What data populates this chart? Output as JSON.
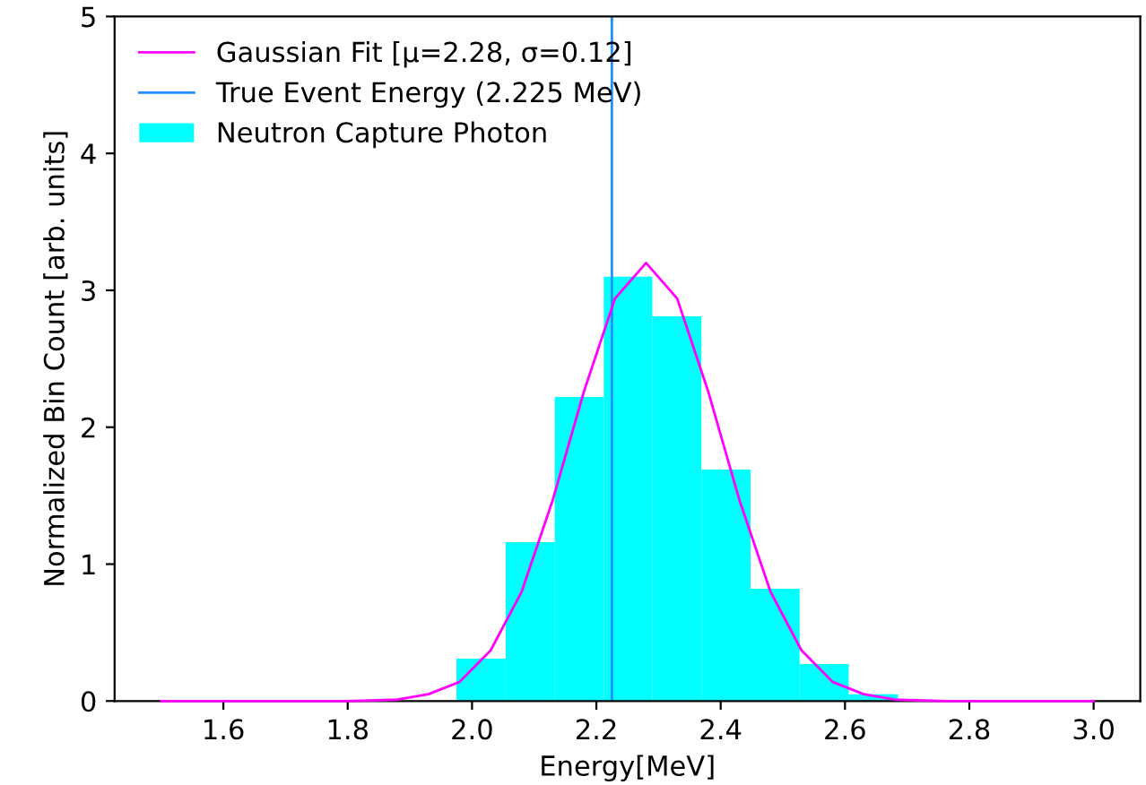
{
  "chart_data": {
    "type": "histogram",
    "xlabel": "Energy[MeV]",
    "ylabel": "Normalized Bin Count [arb. units]",
    "bins": [
      1.975,
      2.054,
      2.133,
      2.212,
      2.29,
      2.369,
      2.448,
      2.527,
      2.606,
      2.685
    ],
    "series": [
      {
        "name": "Neutron Capture Photon",
        "color": "#00ffff",
        "values": [
          0.31,
          1.16,
          2.22,
          3.1,
          2.81,
          1.69,
          0.82,
          0.27,
          0.05
        ]
      },
      {
        "name": "Gaussian Fit [μ=2.28, σ=0.12]",
        "type": "line",
        "color": "#ff00ff",
        "x": [
          1.5,
          1.8,
          1.88,
          1.93,
          1.98,
          2.03,
          2.08,
          2.13,
          2.18,
          2.23,
          2.28,
          2.33,
          2.38,
          2.43,
          2.48,
          2.53,
          2.58,
          2.63,
          2.68,
          2.76,
          3.0
        ],
        "values": [
          0,
          0,
          0.01,
          0.05,
          0.14,
          0.37,
          0.8,
          1.47,
          2.26,
          2.94,
          3.2,
          2.94,
          2.26,
          1.47,
          0.8,
          0.37,
          0.14,
          0.05,
          0.01,
          0,
          0
        ]
      }
    ],
    "ref_lines": [
      {
        "axis": "x",
        "value": 2.225,
        "label": "True Event Energy (2.225 MeV)",
        "color": "#1e90ff"
      }
    ],
    "xlim": [
      1.425,
      3.075
    ],
    "xticks": [
      1.6,
      1.8,
      {
        "value": 2,
        "label": "2.0"
      },
      2.2,
      2.4,
      2.6,
      2.8,
      {
        "value": 3,
        "label": "3.0"
      }
    ],
    "ylim": [
      0,
      5
    ],
    "yticks": [
      0,
      1,
      2,
      3,
      4,
      5
    ],
    "legend": "top left"
  }
}
